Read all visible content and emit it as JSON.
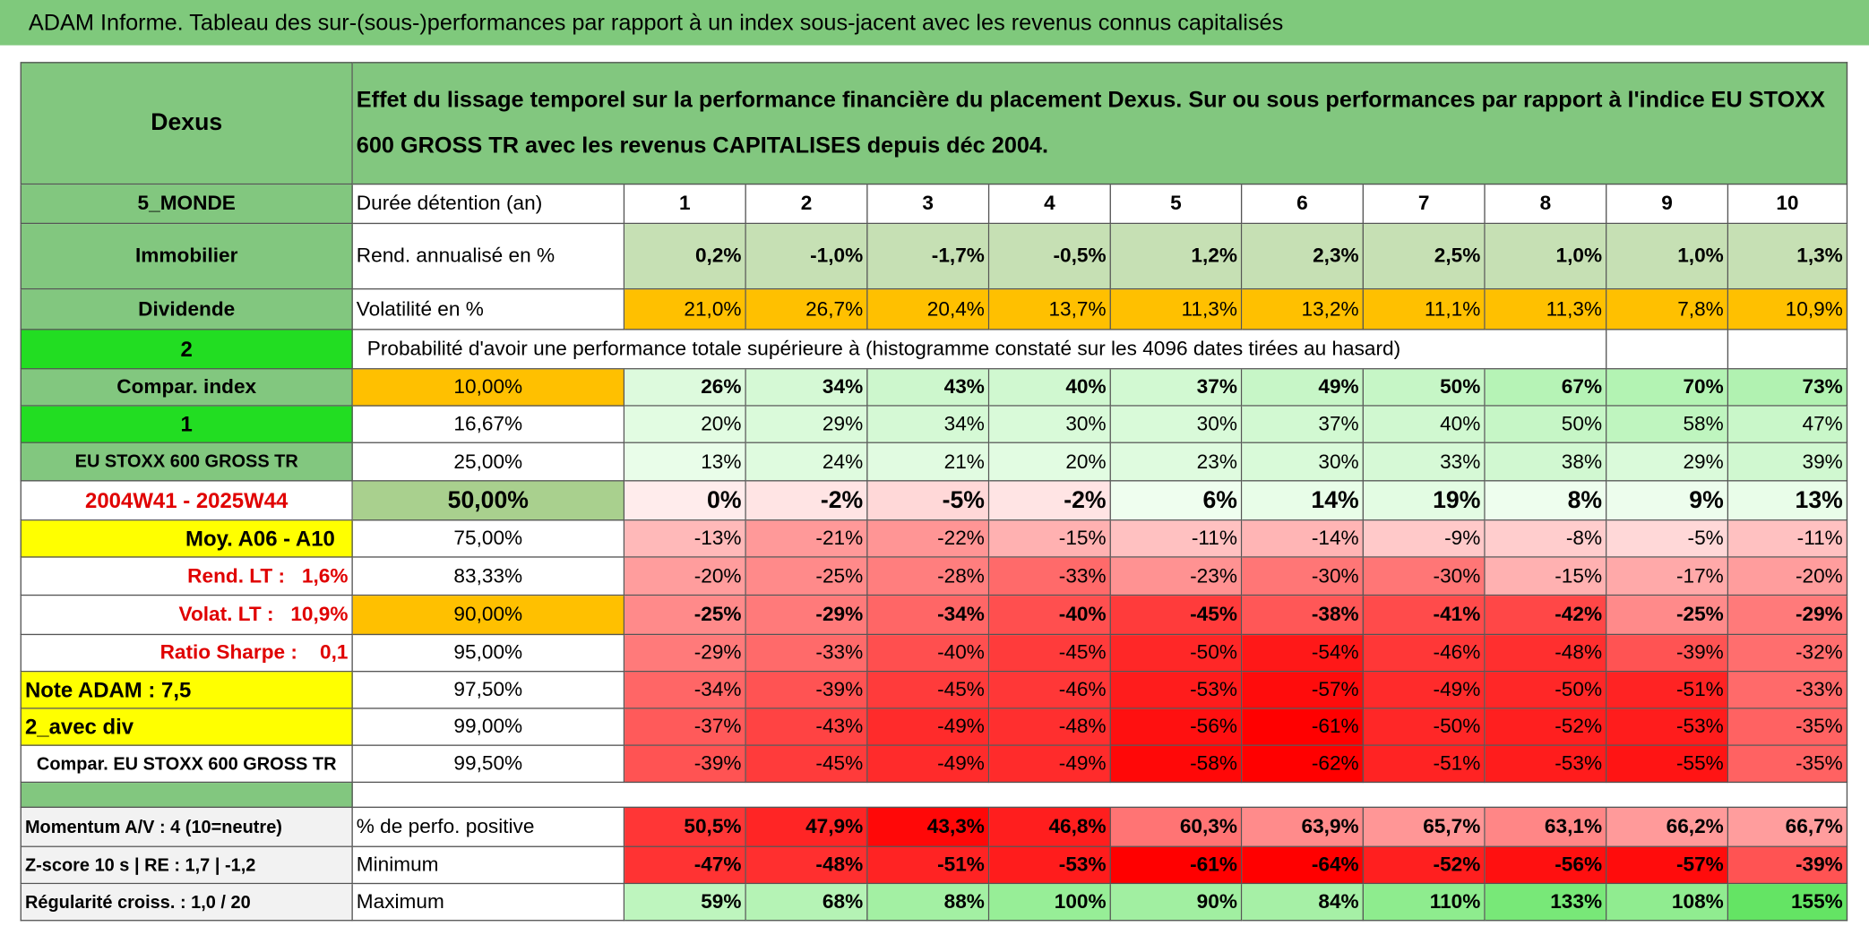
{
  "header": {
    "title": "ADAM Informe. Tableau des sur-(sous-)performances par rapport à un index sous-jacent avec les revenus connus capitalisés"
  },
  "table": {
    "header": [
      "Dexus",
      "Effet du lissage temporel sur la performance financière du placement Dexus. Sur ou sous performances par rapport à l'indice EU STOXX 600 GROSS TR avec les revenus CAPITALISES depuis déc 2004."
    ],
    "rows": [
      [
        "5_MONDE",
        "Durée détention (an)",
        "1",
        "2",
        "3",
        "4",
        "5",
        "6",
        "7",
        "8",
        "9",
        "10"
      ],
      [
        "Immobilier",
        "Rend. annualisé en %",
        "0,2%",
        "-1,0%",
        "-1,7%",
        "-0,5%",
        "1,2%",
        "2,3%",
        "2,5%",
        "1,0%",
        "1,0%",
        "1,3%"
      ],
      [
        "Dividende",
        "Volatilité en %",
        "21,0%",
        "26,7%",
        "20,4%",
        "13,7%",
        "11,3%",
        "13,2%",
        "11,1%",
        "11,3%",
        "7,8%",
        "10,9%"
      ],
      [
        "2",
        "Probabilité d'avoir une performance totale supérieure à (histogramme constaté sur les 4096 dates tirées au hasard)"
      ],
      [
        "Compar. index",
        "10,00%",
        "26%",
        "34%",
        "43%",
        "40%",
        "37%",
        "49%",
        "50%",
        "67%",
        "70%",
        "73%"
      ],
      [
        "1",
        "16,67%",
        "20%",
        "29%",
        "34%",
        "30%",
        "30%",
        "37%",
        "40%",
        "50%",
        "58%",
        "47%"
      ],
      [
        "EU STOXX 600 GROSS TR",
        "25,00%",
        "13%",
        "24%",
        "21%",
        "20%",
        "23%",
        "30%",
        "33%",
        "38%",
        "29%",
        "39%"
      ],
      [
        "2004W41 - 2025W44",
        "50,00%",
        "0%",
        "-2%",
        "-5%",
        "-2%",
        "6%",
        "14%",
        "19%",
        "8%",
        "9%",
        "13%"
      ],
      [
        "Moy. A06 - A10",
        "75,00%",
        "-13%",
        "-21%",
        "-22%",
        "-15%",
        "-11%",
        "-14%",
        "-9%",
        "-8%",
        "-5%",
        "-11%"
      ],
      [
        "Rend. LT :   1,6%",
        "83,33%",
        "-20%",
        "-25%",
        "-28%",
        "-33%",
        "-23%",
        "-30%",
        "-30%",
        "-15%",
        "-17%",
        "-20%"
      ],
      [
        "Volat. LT :   10,9%",
        "90,00%",
        "-25%",
        "-29%",
        "-34%",
        "-40%",
        "-45%",
        "-38%",
        "-41%",
        "-42%",
        "-25%",
        "-29%"
      ],
      [
        "Ratio Sharpe :    0,1",
        "95,00%",
        "-29%",
        "-33%",
        "-40%",
        "-45%",
        "-50%",
        "-54%",
        "-46%",
        "-48%",
        "-39%",
        "-32%"
      ],
      [
        "Note ADAM : 7,5",
        "97,50%",
        "-34%",
        "-39%",
        "-45%",
        "-46%",
        "-53%",
        "-57%",
        "-49%",
        "-50%",
        "-51%",
        "-33%"
      ],
      [
        "2_avec div",
        "99,00%",
        "-37%",
        "-43%",
        "-49%",
        "-48%",
        "-56%",
        "-61%",
        "-50%",
        "-52%",
        "-53%",
        "-35%"
      ],
      [
        "Compar. EU STOXX 600 GROSS TR",
        "99,50%",
        "-39%",
        "-45%",
        "-49%",
        "-49%",
        "-58%",
        "-62%",
        "-51%",
        "-53%",
        "-55%",
        "-35%"
      ],
      [
        "Momentum A/V : 4 (10=neutre)",
        "% de perfo. positive",
        "50,5%",
        "47,9%",
        "43,3%",
        "46,8%",
        "60,3%",
        "63,9%",
        "65,7%",
        "63,1%",
        "66,2%",
        "66,7%"
      ],
      [
        "Z-score 10 s | RE : 1,7 | -1,2",
        "Minimum",
        "-47%",
        "-48%",
        "-51%",
        "-53%",
        "-61%",
        "-64%",
        "-52%",
        "-56%",
        "-57%",
        "-39%"
      ],
      [
        "Régularité croiss. : 1,0 / 20",
        "Maximum",
        "59%",
        "68%",
        "88%",
        "100%",
        "90%",
        "84%",
        "110%",
        "133%",
        "108%",
        "155%"
      ]
    ]
  }
}
